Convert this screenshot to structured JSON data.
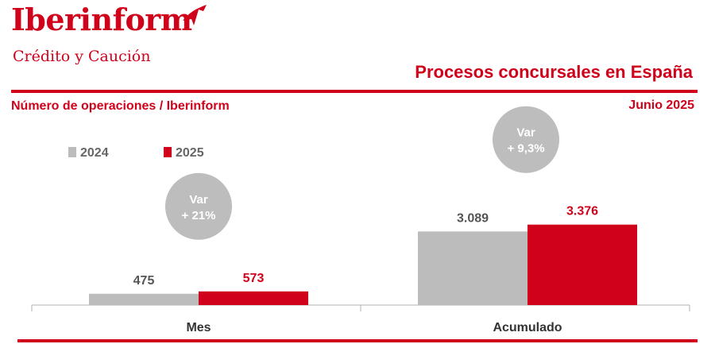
{
  "brand": {
    "name": "Iberinform",
    "tagline": "Crédito y Caución",
    "color": "#d0021b",
    "logo_mark": "plane-icon"
  },
  "header": {
    "title": "Procesos concursales en España",
    "subtitle": "Número de operaciones / Iberinform",
    "date": "Junio 2025"
  },
  "colors": {
    "accent": "#d0021b",
    "series_2024": "#bcbcbc",
    "series_2025": "#d0021b",
    "badge": "#bdbdbd",
    "text_dark": "#555555"
  },
  "chart_data": {
    "type": "bar",
    "title": "Procesos concursales en España",
    "categories": [
      "Mes",
      "Acumulado"
    ],
    "series": [
      {
        "name": "2024",
        "values": [
          475,
          3089
        ],
        "labels": [
          "475",
          "3.089"
        ]
      },
      {
        "name": "2025",
        "values": [
          573,
          3376
        ],
        "labels": [
          "573",
          "3.376"
        ]
      }
    ],
    "variation": [
      {
        "title": "Var",
        "value": "+ 21%"
      },
      {
        "title": "Var",
        "value": "+ 9,3%"
      }
    ],
    "ylim": [
      0,
      3900
    ],
    "legend": "top-left",
    "grid": false
  }
}
